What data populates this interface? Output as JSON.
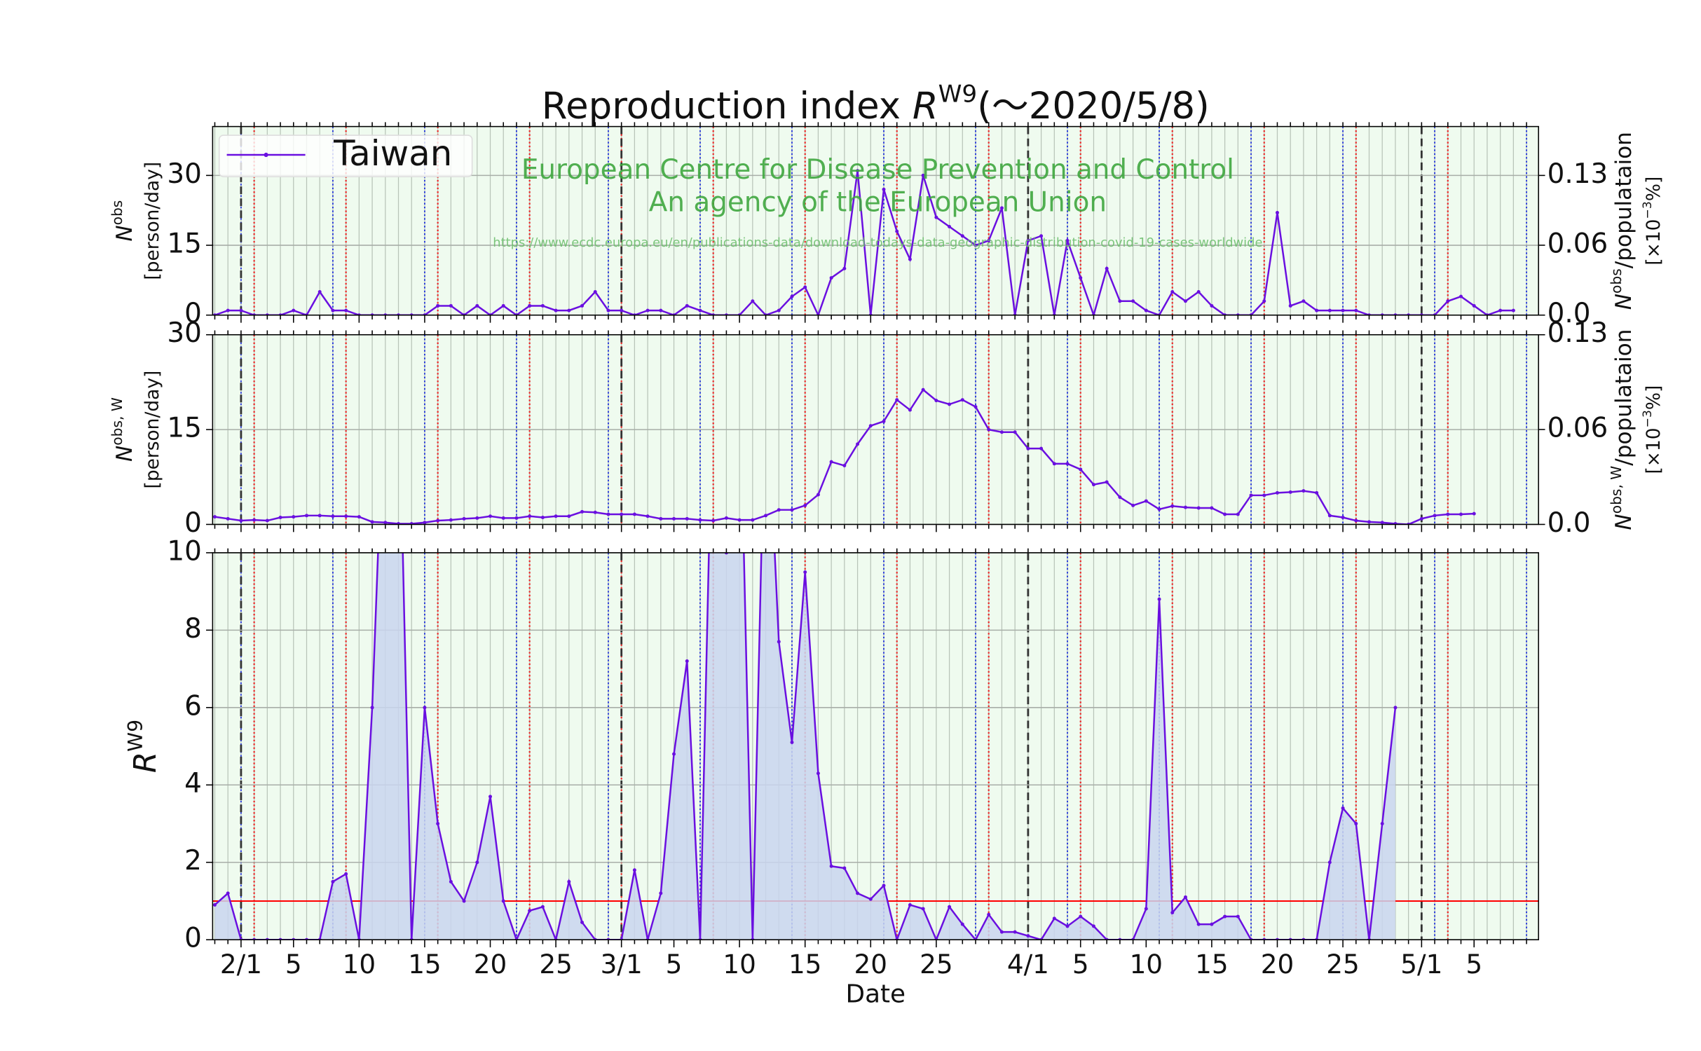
{
  "chart_data": {
    "type": "line",
    "title": {
      "text": "Reproduction index ",
      "symbol": "R",
      "superscript": "W9",
      "suffix": "(～2020/5/8)"
    },
    "xlabel": "Date",
    "annotations": [
      "European Centre for Disease Prevention and Control",
      "An agency of the European Union",
      "https://www.ecdc.europa.eu/en/publications-data/download-todays-data-geographic-distribution-covid-19-cases-worldwide"
    ],
    "categories": [
      null,
      null,
      "2/1",
      null,
      null,
      null,
      "5",
      null,
      null,
      null,
      null,
      "10",
      null,
      null,
      null,
      null,
      "15",
      null,
      null,
      null,
      null,
      "20",
      null,
      null,
      null,
      null,
      "25",
      null,
      null,
      null,
      null,
      "3/1",
      null,
      null,
      null,
      "5",
      null,
      null,
      null,
      null,
      "10",
      null,
      null,
      null,
      null,
      "15",
      null,
      null,
      null,
      null,
      "20",
      null,
      null,
      null,
      null,
      "25",
      null,
      null,
      null,
      null,
      null,
      null,
      "4/1",
      null,
      null,
      null,
      "5",
      null,
      null,
      null,
      null,
      "10",
      null,
      null,
      null,
      null,
      "15",
      null,
      null,
      null,
      null,
      "20",
      null,
      null,
      null,
      null,
      "25",
      null,
      null,
      null,
      null,
      null,
      "5/1",
      null,
      null,
      null,
      "5",
      null,
      null,
      null
    ],
    "panels": [
      {
        "ylabel": {
          "symbol": "N",
          "superscript": "obs",
          "unit": "[person/day]"
        },
        "y2label": {
          "symbol": "N",
          "superscript": "obs",
          "suffix": "/populataion",
          "unit": "[×10",
          "unit_superscript": "−3",
          "unit_suffix": "%]"
        },
        "ylim": [
          0,
          40.5
        ],
        "yticks": [
          0,
          15,
          30
        ],
        "y2lim": [
          0,
          0.1716
        ],
        "y2ticks": [
          {
            "value": 0,
            "label": "0.0"
          },
          {
            "value": 0.0636,
            "label": "0.06"
          },
          {
            "value": 0.1271,
            "label": "0.13"
          }
        ],
        "grid": true,
        "legend": "upper left",
        "series": [
          {
            "name": "Taiwan",
            "color": "#6a0fe0",
            "values": [
              0,
              1,
              1,
              0,
              0,
              0,
              1,
              0,
              5,
              1,
              1,
              0,
              0,
              0,
              0,
              0,
              0,
              2,
              2,
              0,
              2,
              0,
              2,
              0,
              2,
              2,
              1,
              1,
              2,
              5,
              1,
              1,
              0,
              1,
              1,
              0,
              2,
              1,
              0,
              0,
              0,
              3,
              0,
              1,
              4,
              6,
              0,
              8,
              10,
              31,
              0,
              27,
              18,
              12,
              30,
              21,
              19,
              17,
              15,
              16,
              23,
              0,
              16,
              17,
              0,
              16,
              8,
              0,
              10,
              3,
              3,
              1,
              0,
              5,
              3,
              5,
              2,
              0,
              0,
              0,
              3,
              22,
              2,
              3,
              1,
              1,
              1,
              1,
              0,
              0,
              0,
              0,
              0,
              0,
              3,
              4,
              2,
              0,
              1,
              1
            ]
          }
        ]
      },
      {
        "ylabel": {
          "symbol": "N",
          "superscript": "obs, W",
          "unit": "[person/day]"
        },
        "y2label": {
          "symbol": "N",
          "superscript": "obs, W",
          "suffix": "/populataion",
          "unit": "[×10",
          "unit_superscript": "−3",
          "unit_suffix": "%]"
        },
        "ylim": [
          0,
          30
        ],
        "yticks": [
          0,
          15,
          30
        ],
        "y2lim": [
          0,
          0.1271
        ],
        "y2ticks": [
          {
            "value": 0,
            "label": "0.0"
          },
          {
            "value": 0.0636,
            "label": "0.06"
          },
          {
            "value": 0.1271,
            "label": "0.13"
          }
        ],
        "grid": true,
        "series": [
          {
            "color": "#6a0fe0",
            "values": [
              1.2,
              0.9,
              0.6,
              0.7,
              0.6,
              1.1,
              1.2,
              1.4,
              1.4,
              1.3,
              1.3,
              1.2,
              0.4,
              0.3,
              0.1,
              0.1,
              0.3,
              0.6,
              0.7,
              0.9,
              1.0,
              1.3,
              1.0,
              1.0,
              1.3,
              1.1,
              1.3,
              1.3,
              2.0,
              1.9,
              1.6,
              1.6,
              1.6,
              1.3,
              0.9,
              0.9,
              0.9,
              0.7,
              0.6,
              1.0,
              0.7,
              0.7,
              1.4,
              2.3,
              2.3,
              3.0,
              4.7,
              9.9,
              9.3,
              12.7,
              15.6,
              16.3,
              19.7,
              18.1,
              21.3,
              19.6,
              19.0,
              19.7,
              18.6,
              15.0,
              14.6,
              14.6,
              12.0,
              12.0,
              9.6,
              9.6,
              8.7,
              6.3,
              6.7,
              4.3,
              3.0,
              3.7,
              2.4,
              2.9,
              2.7,
              2.6,
              2.6,
              1.6,
              1.6,
              4.6,
              4.6,
              5.0,
              5.1,
              5.3,
              5.0,
              1.4,
              1.1,
              0.6,
              0.4,
              0.3,
              0.1,
              0.0,
              0.9,
              1.4,
              1.6,
              1.6,
              1.7,
              null,
              null,
              null
            ]
          }
        ]
      },
      {
        "ylabel": {
          "symbol": "R",
          "superscript": "W9"
        },
        "ylim": [
          0,
          10
        ],
        "yticks": [
          0,
          2,
          4,
          6,
          8,
          10
        ],
        "grid": true,
        "fill": "#c9d5ee",
        "hline": 1,
        "hline_color": "#ff0000",
        "series": [
          {
            "color": "#6a0fe0",
            "values": [
              0.9,
              1.2,
              0,
              0,
              0,
              0,
              0,
              0,
              0,
              1.5,
              1.7,
              0,
              6,
              15,
              15,
              0,
              6,
              3,
              1.5,
              1,
              2,
              3.7,
              1,
              0,
              0.75,
              0.85,
              0,
              1.5,
              0.45,
              0,
              0,
              0,
              1.8,
              0,
              1.2,
              4.8,
              7.2,
              0,
              15,
              10,
              15,
              0,
              15,
              7.7,
              5.1,
              9.5,
              4.3,
              1.9,
              1.85,
              1.2,
              1.05,
              1.4,
              0,
              0.9,
              0.8,
              0,
              0.85,
              0.4,
              0,
              0.65,
              0.2,
              0.2,
              0.1,
              0,
              0.55,
              0.35,
              0.6,
              0.35,
              0,
              0,
              0,
              0.8,
              8.8,
              0.7,
              1.1,
              0.4,
              0.4,
              0.6,
              0.6,
              0,
              0,
              0,
              0,
              0,
              0,
              2,
              3.4,
              3.0,
              0,
              3.0,
              6.0,
              null,
              null,
              null,
              null,
              null,
              null,
              null,
              null,
              null
            ]
          }
        ]
      }
    ]
  }
}
